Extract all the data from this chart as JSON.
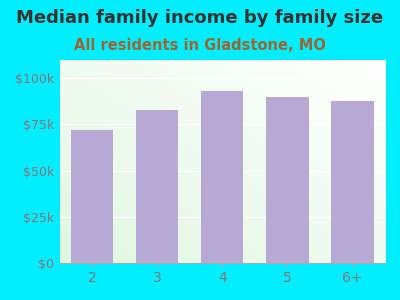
{
  "title": "Median family income by family size",
  "subtitle": "All residents in Gladstone, MO",
  "categories": [
    "2",
    "3",
    "4",
    "5",
    "6+"
  ],
  "values": [
    72000,
    83000,
    93000,
    90000,
    88000
  ],
  "bar_color": "#b8a9d4",
  "background_color": "#00eeff",
  "title_color": "#333333",
  "subtitle_color": "#996633",
  "tick_label_color": "#7a7a7a",
  "ylim": [
    0,
    110000
  ],
  "yticks": [
    0,
    25000,
    50000,
    75000,
    100000
  ],
  "ytick_labels": [
    "$0",
    "$25k",
    "$50k",
    "$75k",
    "$100k"
  ],
  "title_fontsize": 13,
  "subtitle_fontsize": 10.5,
  "bar_width": 0.65
}
